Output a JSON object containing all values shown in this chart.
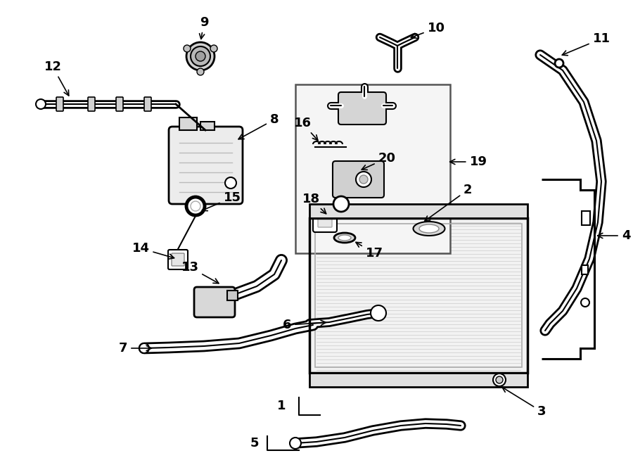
{
  "bg_color": "#ffffff",
  "line_color": "#000000",
  "label_fontsize": 13
}
